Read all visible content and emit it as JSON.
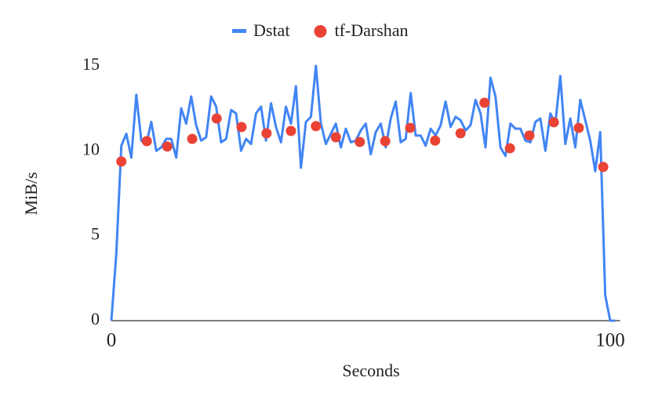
{
  "chart_data": {
    "type": "line",
    "xlabel": "Seconds",
    "ylabel": "MiB/s",
    "xlim": [
      0,
      102
    ],
    "ylim": [
      0,
      15
    ],
    "xticks": [
      0,
      100
    ],
    "yticks": [
      0,
      5,
      10,
      15
    ],
    "grid": false,
    "legend": "top",
    "series": [
      {
        "name": "Dstat",
        "type": "line",
        "color": "#4285f4",
        "x": [
          0,
          1,
          2,
          3,
          4,
          5,
          6,
          7,
          8,
          9,
          10,
          11,
          12,
          13,
          14,
          15,
          16,
          17,
          18,
          19,
          20,
          21,
          22,
          23,
          24,
          25,
          26,
          27,
          28,
          29,
          30,
          31,
          32,
          33,
          34,
          35,
          36,
          37,
          38,
          39,
          40,
          41,
          42,
          43,
          44,
          45,
          46,
          47,
          48,
          49,
          50,
          51,
          52,
          53,
          54,
          55,
          56,
          57,
          58,
          59,
          60,
          61,
          62,
          63,
          64,
          65,
          66,
          67,
          68,
          69,
          70,
          71,
          72,
          73,
          74,
          75,
          76,
          77,
          78,
          79,
          80,
          81,
          82,
          83,
          84,
          85,
          86,
          87,
          88,
          89,
          90,
          91,
          92,
          93,
          94,
          95,
          96,
          97,
          98,
          99,
          100,
          101
        ],
        "values": [
          0,
          4,
          10.3,
          11,
          9.6,
          13.3,
          10.6,
          10.4,
          11.7,
          10,
          10.2,
          10.7,
          10.7,
          9.6,
          12.5,
          11.6,
          13.2,
          11.5,
          10.6,
          10.8,
          13.2,
          12.6,
          10.5,
          10.7,
          12.4,
          12.2,
          10,
          10.7,
          10.4,
          12.2,
          12.6,
          10.6,
          12.8,
          11.4,
          10.5,
          12.6,
          11.6,
          13.8,
          9,
          11.7,
          12,
          15,
          11.6,
          10.4,
          11,
          11.6,
          10.2,
          11.3,
          10.5,
          10.6,
          11.2,
          11.6,
          9.8,
          11.1,
          11.6,
          10.2,
          11.9,
          12.9,
          10.5,
          10.7,
          13.4,
          10.9,
          10.9,
          10.3,
          11.3,
          10.9,
          11.5,
          12.9,
          11.4,
          12,
          11.8,
          11.2,
          11.5,
          13,
          12.2,
          10.2,
          14.3,
          13.2,
          10.2,
          9.7,
          11.6,
          11.3,
          11.3,
          10.6,
          10.5,
          11.7,
          11.9,
          10,
          12.2,
          11.6,
          14.4,
          10.4,
          11.9,
          10.2,
          13,
          11.8,
          10.6,
          8.8,
          11.1,
          1.5,
          0,
          0
        ]
      },
      {
        "name": "tf-Darshan",
        "type": "scatter",
        "color": "#ea4335",
        "x": [
          2,
          7.1,
          11.2,
          16.2,
          21.1,
          26.1,
          31.1,
          36,
          41,
          45,
          49.8,
          54.9,
          59.9,
          64.9,
          70,
          74.8,
          79.9,
          83.8,
          88.7,
          93.7,
          98.6
        ],
        "values": [
          9.37,
          10.57,
          10.25,
          10.7,
          11.9,
          11.4,
          11.03,
          11.17,
          11.45,
          10.8,
          10.52,
          10.57,
          11.35,
          10.6,
          11.03,
          12.83,
          10.15,
          10.9,
          11.68,
          11.35,
          9.05
        ]
      }
    ]
  }
}
